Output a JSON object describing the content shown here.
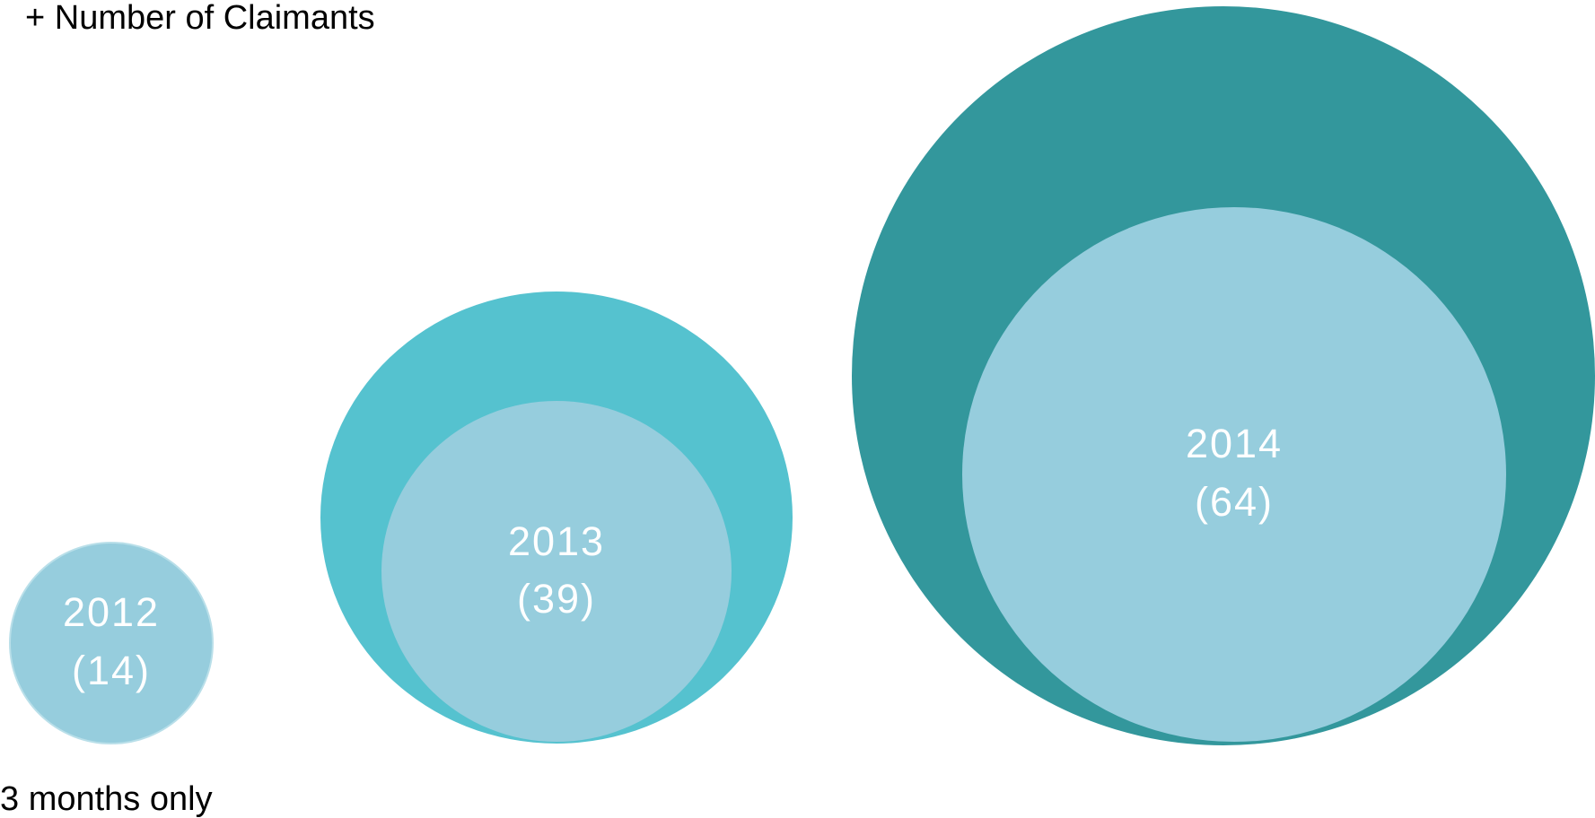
{
  "legend": "+ Number of Claimants",
  "footnote": "3 months only",
  "nodes": [
    {
      "label": "2012",
      "count": "(14)"
    },
    {
      "label": "2013",
      "count": "(39)"
    },
    {
      "label": "2014",
      "count": "(64)"
    }
  ]
}
